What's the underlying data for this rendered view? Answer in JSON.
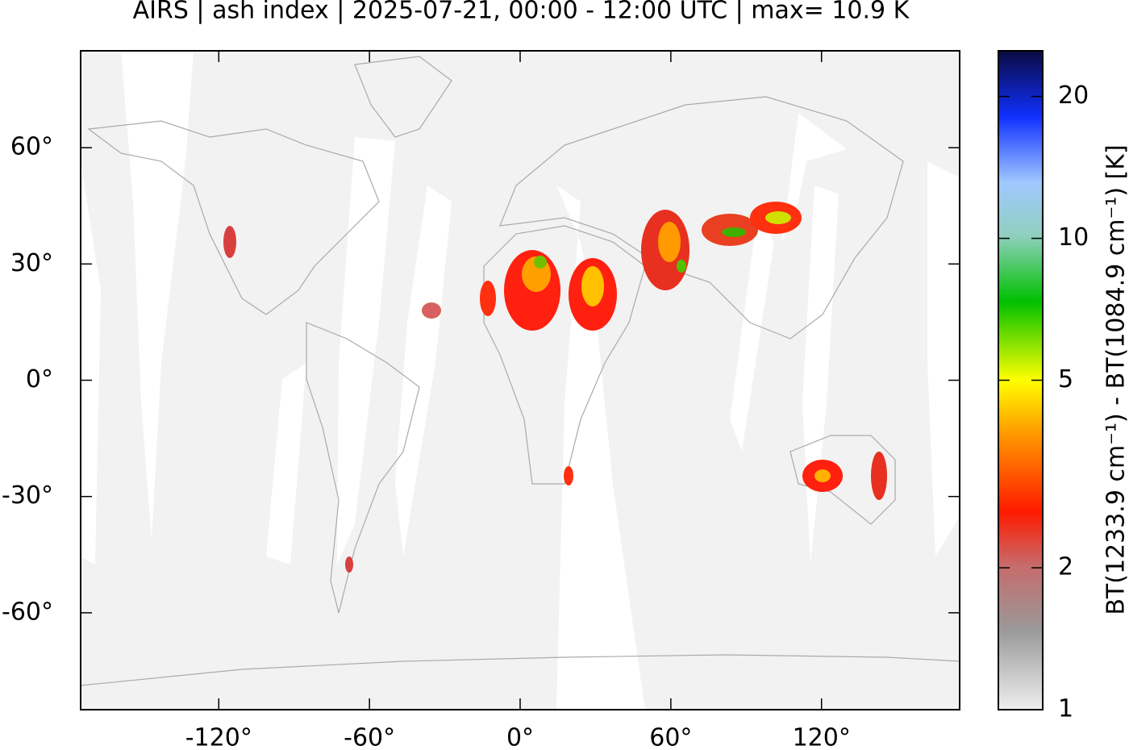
{
  "chart_data": {
    "type": "map",
    "title": "AIRS | ash index | 2025-07-21, 00:00 - 12:00 UTC | max= 10.9 K",
    "xlim": [
      -175,
      175
    ],
    "ylim": [
      -85,
      85
    ],
    "xticks": [
      {
        "value": -120,
        "label": "-120°"
      },
      {
        "value": -60,
        "label": "-60°"
      },
      {
        "value": 0,
        "label": "0°"
      },
      {
        "value": 60,
        "label": "60°"
      },
      {
        "value": 120,
        "label": "120°"
      }
    ],
    "yticks": [
      {
        "value": 60,
        "label": "60°"
      },
      {
        "value": 30,
        "label": "30°"
      },
      {
        "value": 0,
        "label": "0°"
      },
      {
        "value": -30,
        "label": "-30°"
      },
      {
        "value": -60,
        "label": "-60°"
      }
    ],
    "colorbar": {
      "label": "BT(1233.9 cm⁻¹) - BT(1084.9 cm⁻¹) [K]",
      "scale": "log",
      "lim": [
        1,
        25
      ],
      "ticks": [
        1,
        2,
        5,
        10,
        20
      ]
    }
  }
}
